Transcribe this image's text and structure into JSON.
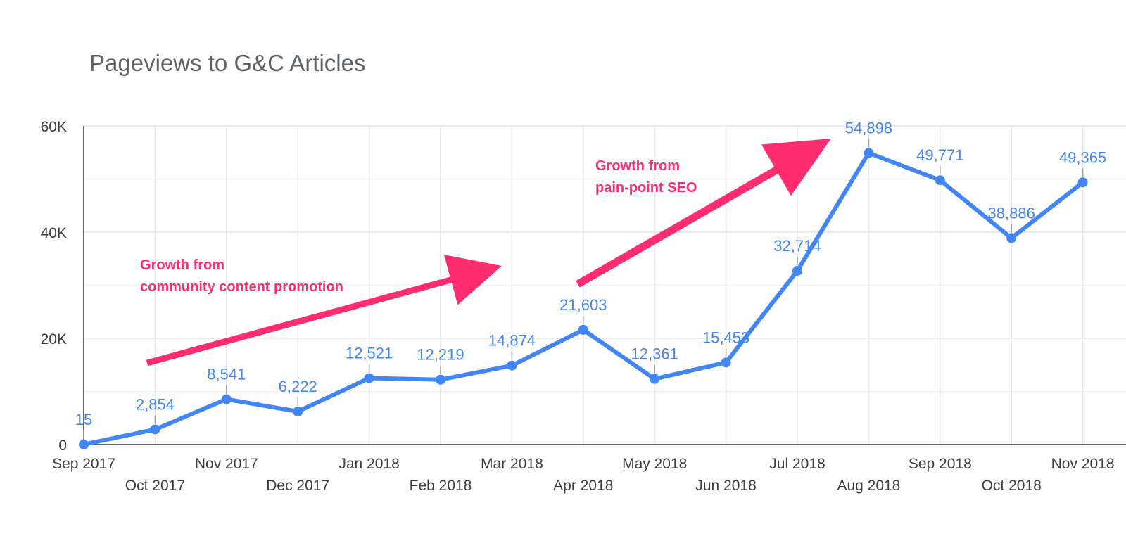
{
  "chart_data": {
    "type": "line",
    "title": "Pageviews to G&C Articles",
    "xlabel": "",
    "ylabel": "",
    "x": [
      "Sep 2017",
      "Oct 2017",
      "Nov 2017",
      "Dec 2017",
      "Jan 2018",
      "Feb 2018",
      "Mar 2018",
      "Apr 2018",
      "May 2018",
      "Jun 2018",
      "Jul 2018",
      "Aug 2018",
      "Sep 2018",
      "Oct 2018",
      "Nov 2018"
    ],
    "series": [
      {
        "values": [
          15,
          2854,
          8541,
          6222,
          12521,
          12219,
          14874,
          21603,
          12361,
          15453,
          32714,
          54898,
          49771,
          38886,
          49365
        ],
        "labels": [
          "15",
          "2,854",
          "8,541",
          "6,222",
          "12,521",
          "12,219",
          "14,874",
          "21,603",
          "12,361",
          "15,453",
          "32,714",
          "54,898",
          "49,771",
          "38,886",
          "49,365"
        ],
        "color": "#4285f4"
      }
    ],
    "ylim": [
      0,
      60000
    ],
    "yticks": [
      {
        "value": 0,
        "label": "0"
      },
      {
        "value": 20000,
        "label": "20K"
      },
      {
        "value": 40000,
        "label": "40K"
      },
      {
        "value": 60000,
        "label": "60K"
      }
    ],
    "grid": true,
    "legend": "none",
    "annotations": [
      {
        "lines": [
          "Growth from",
          "community content promotion"
        ],
        "color": "#ff2d6f"
      },
      {
        "lines": [
          "Growth from",
          "pain-point SEO"
        ],
        "color": "#ff2d6f"
      }
    ],
    "colors": {
      "line": "#4285f4",
      "arrow": "#ff2d6f",
      "grid": "#e6e6e6",
      "axis": "#333333"
    }
  }
}
